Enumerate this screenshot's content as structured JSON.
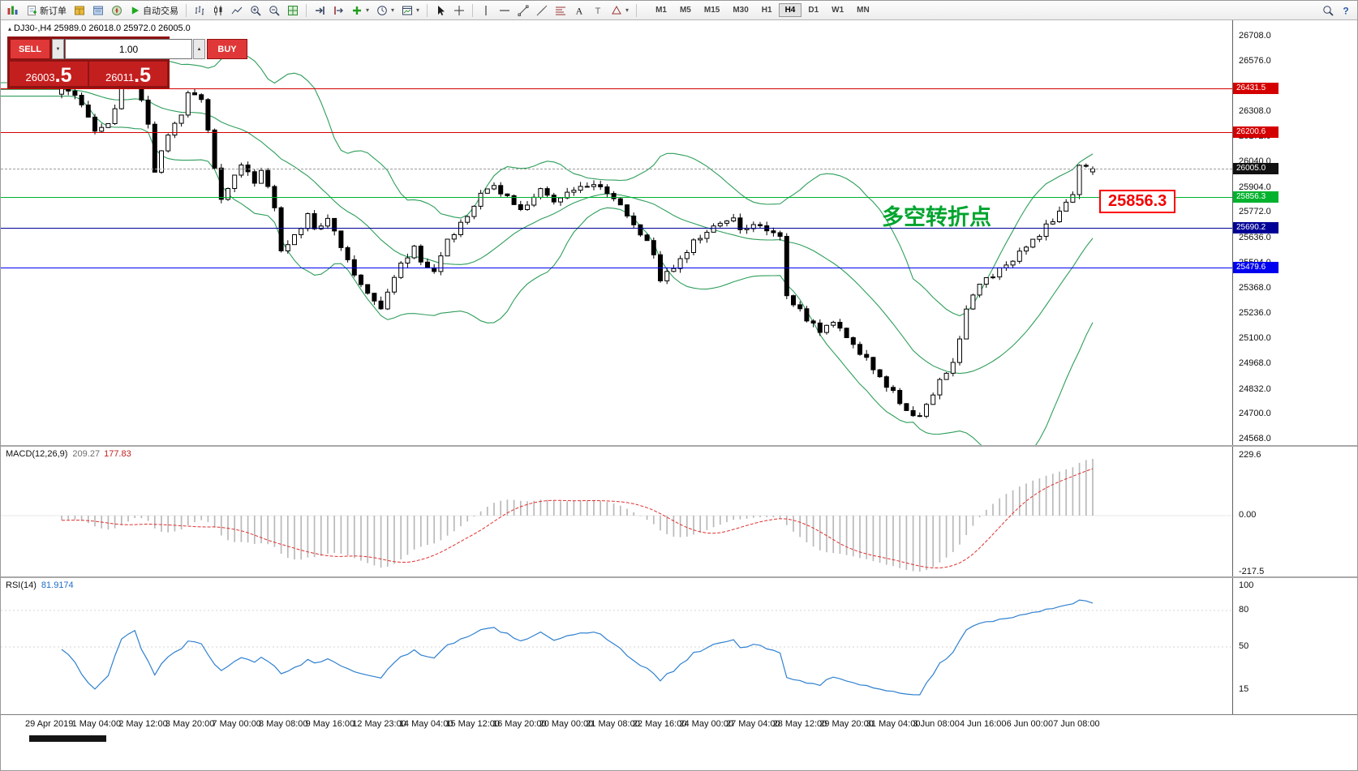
{
  "toolbar": {
    "new_order_label": "新订单",
    "autotrading_label": "自动交易",
    "timeframes": [
      "M1",
      "M5",
      "M15",
      "M30",
      "H1",
      "H4",
      "D1",
      "W1",
      "MN"
    ],
    "active_timeframe": "H4"
  },
  "trade_panel": {
    "sell_label": "SELL",
    "buy_label": "BUY",
    "volume": "1.00",
    "sell_price_main": "26003",
    "sell_price_frac": ".5",
    "buy_price_main": "26011",
    "buy_price_frac": ".5"
  },
  "chart": {
    "symbol_line": "DJ30-,H4  25989.0 26018.0 25972.0 26005.0",
    "annotation": "多空转折点",
    "price_tag": "25856.3",
    "current_price": "26005.0",
    "axis_labels": [
      "26708.0",
      "26576.0",
      "26308.0",
      "26172.0",
      "26040.0",
      "25904.0",
      "25772.0",
      "25636.0",
      "25504.0",
      "25368.0",
      "25236.0",
      "25100.0",
      "24968.0",
      "24832.0",
      "24700.0",
      "24568.0"
    ],
    "hlines": [
      {
        "label": "26431.5",
        "color": "#d40000"
      },
      {
        "label": "26200.6",
        "color": "#d40000"
      },
      {
        "label": "25856.3",
        "color": "#00b22d"
      },
      {
        "label": "25690.2",
        "color": "#000096"
      },
      {
        "label": "25479.6",
        "color": "#0000f0"
      }
    ]
  },
  "macd": {
    "name": "MACD(12,26,9)",
    "main_value": "209.27",
    "signal_value": "177.83",
    "axis": [
      "229.6",
      "0.00",
      "-217.5"
    ]
  },
  "rsi": {
    "name": "RSI(14)",
    "value": "81.9174",
    "axis": [
      "100",
      "80",
      "50",
      "15"
    ]
  },
  "time_axis": [
    "29 Apr 2019",
    "1 May 04:00",
    "2 May 12:00",
    "3 May 20:00",
    "7 May 00:00",
    "8 May 08:00",
    "9 May 16:00",
    "12 May 23:00",
    "14 May 04:00",
    "15 May 12:00",
    "16 May 20:00",
    "20 May 00:00",
    "21 May 08:00",
    "22 May 16:00",
    "24 May 00:00",
    "27 May 04:00",
    "28 May 12:00",
    "29 May 20:00",
    "31 May 04:00",
    "3 Jun 08:00",
    "4 Jun 16:00",
    "6 Jun 00:00",
    "7 Jun 08:00"
  ],
  "colors": {
    "bollinger": "#2e9e5b",
    "candle_up": "#ffffff",
    "candle_down": "#000000",
    "candle_outline": "#000000",
    "macd_hist": "#b9b9b9",
    "macd_signal": "#e03030",
    "rsi_line": "#2f80d0"
  },
  "chart_data": {
    "type": "candlestick-ohlc",
    "symbol": "DJ30-",
    "period": "H4",
    "bars": 156,
    "price_range": {
      "top": 26708.0,
      "bottom": 24568.0
    },
    "last_bar": {
      "open": 25989.0,
      "high": 26018.0,
      "low": 25972.0,
      "close": 26005.0
    },
    "levels": [
      26431.5,
      26200.6,
      25856.3,
      25690.2,
      25479.6
    ],
    "indicators": {
      "bollinger": {
        "period": 20,
        "deviation": 2
      },
      "macd": {
        "fast": 12,
        "slow": 26,
        "signal": 9,
        "main": 209.27,
        "signal_value": 177.83
      },
      "rsi": {
        "period": 14,
        "value": 81.9174
      }
    },
    "price_path": [
      [
        0,
        26420
      ],
      [
        2,
        26390
      ],
      [
        5,
        26210
      ],
      [
        7,
        26230
      ],
      [
        9,
        26420
      ],
      [
        11,
        26520
      ],
      [
        13,
        26250
      ],
      [
        14,
        26000
      ],
      [
        16,
        26180
      ],
      [
        18,
        26300
      ],
      [
        19,
        26420
      ],
      [
        21,
        26360
      ],
      [
        22,
        26220
      ],
      [
        24,
        25830
      ],
      [
        25,
        25900
      ],
      [
        27,
        26010
      ],
      [
        29,
        25940
      ],
      [
        30,
        25990
      ],
      [
        32,
        25810
      ],
      [
        33,
        25560
      ],
      [
        35,
        25650
      ],
      [
        37,
        25760
      ],
      [
        38,
        25670
      ],
      [
        40,
        25730
      ],
      [
        42,
        25590
      ],
      [
        44,
        25430
      ],
      [
        46,
        25340
      ],
      [
        48,
        25270
      ],
      [
        49,
        25350
      ],
      [
        51,
        25490
      ],
      [
        53,
        25580
      ],
      [
        54,
        25500
      ],
      [
        56,
        25470
      ],
      [
        58,
        25620
      ],
      [
        60,
        25720
      ],
      [
        62,
        25810
      ],
      [
        63,
        25880
      ],
      [
        65,
        25910
      ],
      [
        67,
        25850
      ],
      [
        69,
        25790
      ],
      [
        71,
        25860
      ],
      [
        72,
        25890
      ],
      [
        74,
        25820
      ],
      [
        76,
        25870
      ],
      [
        78,
        25910
      ],
      [
        80,
        25930
      ],
      [
        82,
        25870
      ],
      [
        84,
        25810
      ],
      [
        85,
        25750
      ],
      [
        87,
        25670
      ],
      [
        89,
        25550
      ],
      [
        90,
        25410
      ],
      [
        92,
        25490
      ],
      [
        94,
        25570
      ],
      [
        95,
        25620
      ],
      [
        97,
        25660
      ],
      [
        99,
        25710
      ],
      [
        101,
        25730
      ],
      [
        102,
        25690
      ],
      [
        104,
        25710
      ],
      [
        106,
        25680
      ],
      [
        108,
        25640
      ],
      [
        109,
        25340
      ],
      [
        110,
        25290
      ],
      [
        112,
        25210
      ],
      [
        114,
        25130
      ],
      [
        116,
        25190
      ],
      [
        118,
        25120
      ],
      [
        119,
        25060
      ],
      [
        121,
        24990
      ],
      [
        123,
        24900
      ],
      [
        125,
        24820
      ],
      [
        127,
        24720
      ],
      [
        129,
        24690
      ],
      [
        130,
        24750
      ],
      [
        132,
        24880
      ],
      [
        134,
        24960
      ],
      [
        136,
        25260
      ],
      [
        138,
        25390
      ],
      [
        140,
        25440
      ],
      [
        142,
        25490
      ],
      [
        143,
        25530
      ],
      [
        145,
        25600
      ],
      [
        147,
        25660
      ],
      [
        149,
        25740
      ],
      [
        151,
        25820
      ],
      [
        152,
        25860
      ],
      [
        153,
        26020
      ],
      [
        155,
        26005
      ]
    ]
  }
}
